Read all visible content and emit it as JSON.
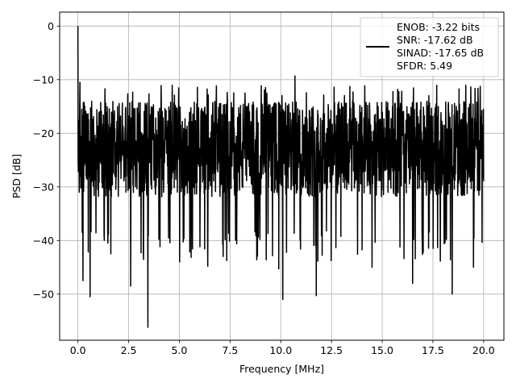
{
  "chart_data": {
    "type": "line",
    "title": "",
    "xlabel": "Frequency [MHz]",
    "ylabel": "PSD [dB]",
    "xlim": [
      -0.9,
      21.0
    ],
    "ylim": [
      -58.6,
      2.6
    ],
    "xticks": [
      0.0,
      2.5,
      5.0,
      7.5,
      10.0,
      12.5,
      15.0,
      17.5,
      20.0
    ],
    "xtick_labels": [
      "0.0",
      "2.5",
      "5.0",
      "7.5",
      "10.0",
      "12.5",
      "15.0",
      "17.5",
      "20.0"
    ],
    "yticks": [
      0,
      -10,
      -20,
      -30,
      -40,
      -50
    ],
    "ytick_labels": [
      "0",
      "−10",
      "−20",
      "−30",
      "−40",
      "−50"
    ],
    "grid": true,
    "legend": {
      "placement": "upper-right",
      "lines": [
        "ENOB: -3.22 bits",
        "SNR: -17.62 dB",
        "SINAD: -17.65 dB",
        "SFDR: 5.49"
      ]
    },
    "series": [
      {
        "color": "#000000",
        "noise_floor_range_db": [
          -35,
          -14
        ],
        "peaks": [
          {
            "x": 0.0,
            "y": 0.0
          },
          {
            "x": 0.1,
            "y": -10.5
          },
          {
            "x": 10.7,
            "y": -9.3
          }
        ],
        "dips": [
          {
            "x": 0.25,
            "y": -47.5
          },
          {
            "x": 0.6,
            "y": -50.5
          },
          {
            "x": 2.6,
            "y": -48.5
          },
          {
            "x": 3.45,
            "y": -56.2
          },
          {
            "x": 6.4,
            "y": -44.8
          },
          {
            "x": 9.9,
            "y": -45.3
          },
          {
            "x": 10.1,
            "y": -51.0
          },
          {
            "x": 11.75,
            "y": -50.3
          },
          {
            "x": 14.5,
            "y": -45.0
          },
          {
            "x": 16.5,
            "y": -48.0
          },
          {
            "x": 18.45,
            "y": -50.0
          },
          {
            "x": 19.5,
            "y": -45.0
          }
        ]
      }
    ]
  }
}
